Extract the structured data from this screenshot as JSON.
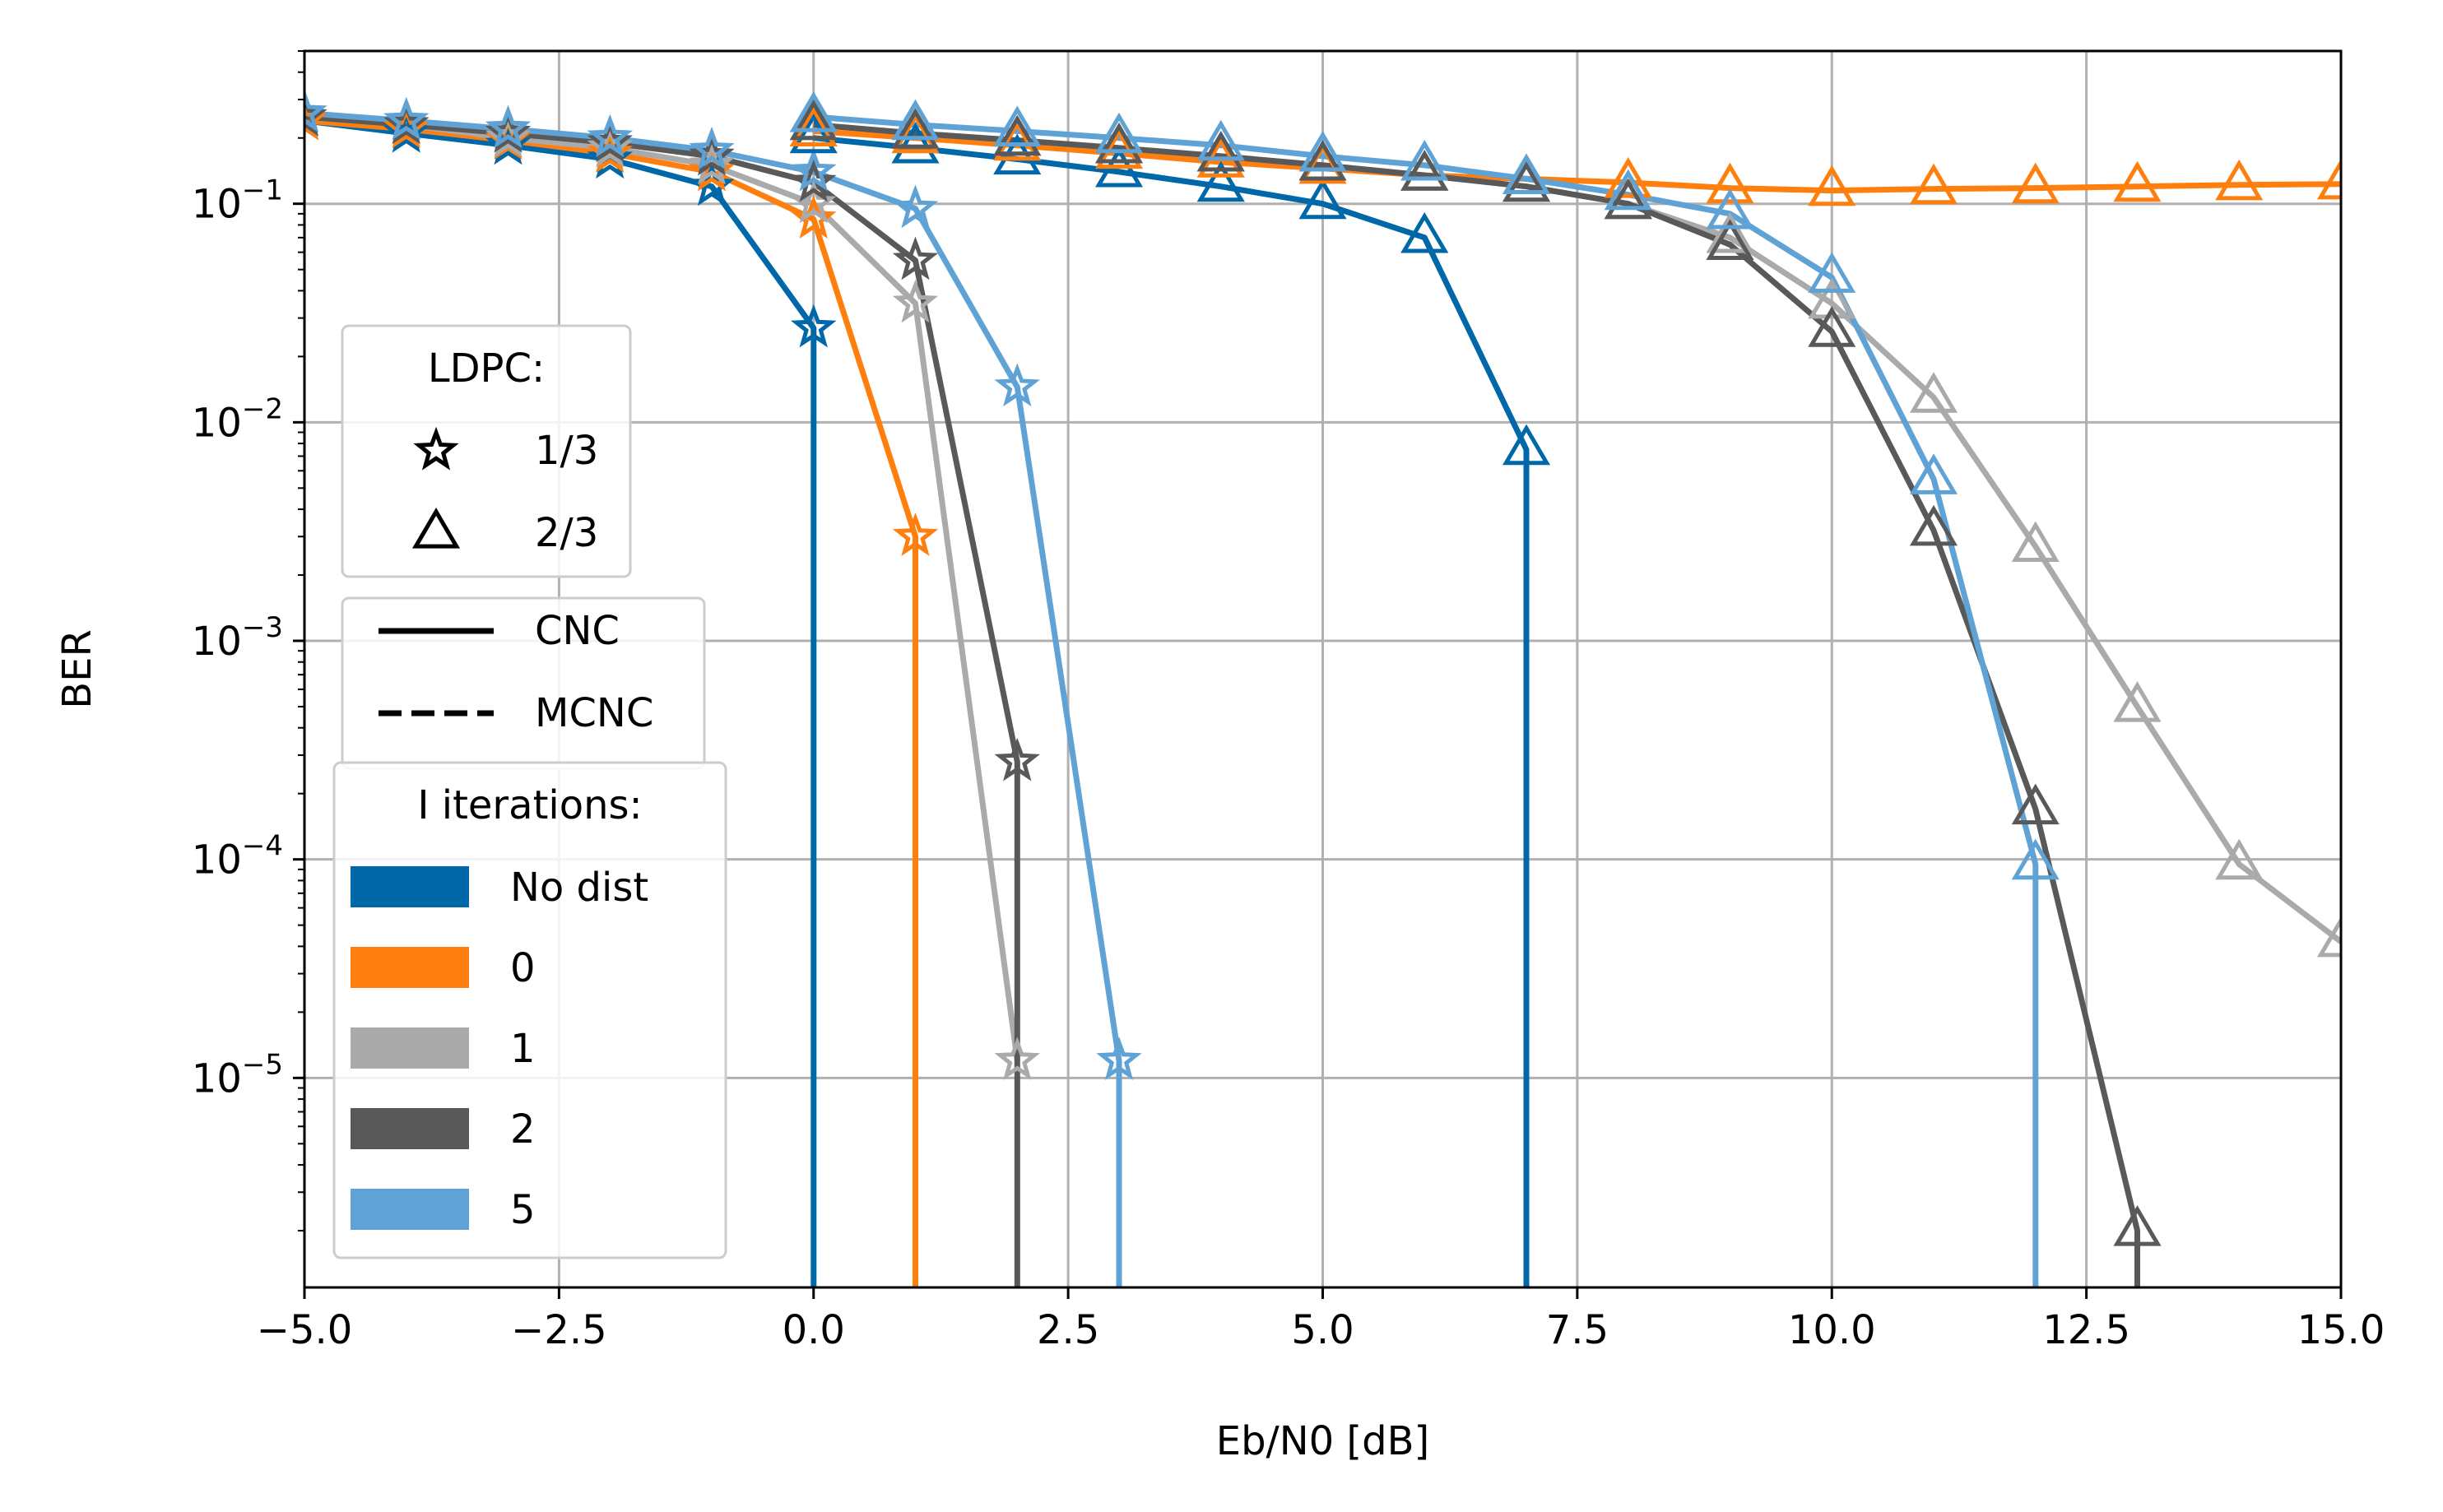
{
  "chart_data": {
    "type": "line",
    "xlabel": "Eb/N0 [dB]",
    "ylabel": "BER",
    "x_scale": "linear",
    "y_scale": "log",
    "xlim": [
      -5,
      15
    ],
    "ylim": [
      1.1e-06,
      0.5
    ],
    "x_ticks": [
      -5,
      -2.5,
      0,
      2.5,
      5,
      7.5,
      10,
      12.5,
      15
    ],
    "x_tick_labels": [
      "−5.0",
      "−2.5",
      "0.0",
      "2.5",
      "5.0",
      "7.5",
      "10.0",
      "12.5",
      "15.0"
    ],
    "y_ticks": [
      1e-05,
      0.0001,
      0.001,
      0.01,
      0.1
    ],
    "y_tick_labels": [
      {
        "base": "10",
        "exp": "−5"
      },
      {
        "base": "10",
        "exp": "−4"
      },
      {
        "base": "10",
        "exp": "−3"
      },
      {
        "base": "10",
        "exp": "−2"
      },
      {
        "base": "10",
        "exp": "−1"
      }
    ],
    "grid": true,
    "colors": {
      "No dist": "#0068a8",
      "0": "#ff7f0e",
      "1": "#aaaaaa",
      "2": "#595959",
      "5": "#5fa2d5"
    },
    "series": [
      {
        "iterations": "No dist",
        "rate": "1/3",
        "marker": "star",
        "x": [
          -5,
          -4,
          -3,
          -2,
          -1,
          0
        ],
        "y": [
          0.24,
          0.21,
          0.185,
          0.16,
          0.12,
          0.027
        ],
        "drop_to_floor": true
      },
      {
        "iterations": "0",
        "rate": "1/3",
        "marker": "star",
        "x": [
          -5,
          -4,
          -3,
          -2,
          -1,
          0,
          1
        ],
        "y": [
          0.24,
          0.22,
          0.195,
          0.17,
          0.14,
          0.085,
          0.003
        ],
        "drop_to_floor": true
      },
      {
        "iterations": "1",
        "rate": "1/3",
        "marker": "star",
        "x": [
          -5,
          -4,
          -3,
          -2,
          -1,
          0,
          1,
          2
        ],
        "y": [
          0.25,
          0.23,
          0.2,
          0.18,
          0.15,
          0.1,
          0.035,
          1.2e-05
        ],
        "drop_to_floor": false
      },
      {
        "iterations": "2",
        "rate": "1/3",
        "marker": "star",
        "x": [
          -5,
          -4,
          -3,
          -2,
          -1,
          0,
          1,
          2
        ],
        "y": [
          0.25,
          0.23,
          0.21,
          0.19,
          0.165,
          0.125,
          0.055,
          0.00028
        ],
        "drop_to_floor": true
      },
      {
        "iterations": "5",
        "rate": "1/3",
        "marker": "star",
        "x": [
          -5,
          -4,
          -3,
          -2,
          -1,
          0,
          1,
          2,
          3
        ],
        "y": [
          0.26,
          0.24,
          0.22,
          0.2,
          0.175,
          0.14,
          0.095,
          0.0145,
          1.2e-05
        ],
        "drop_to_floor": true
      },
      {
        "iterations": "No dist",
        "rate": "2/3",
        "marker": "triangle",
        "x": [
          0,
          1,
          2,
          3,
          4,
          5,
          6,
          7
        ],
        "y": [
          0.2,
          0.18,
          0.16,
          0.14,
          0.12,
          0.1,
          0.07,
          0.0075
        ],
        "drop_to_floor": true
      },
      {
        "iterations": "0",
        "rate": "2/3",
        "marker": "triangle",
        "x": [
          0,
          1,
          2,
          3,
          4,
          5,
          6,
          7,
          8,
          9,
          10,
          11,
          12,
          13,
          14,
          15
        ],
        "y": [
          0.215,
          0.2,
          0.185,
          0.17,
          0.155,
          0.145,
          0.135,
          0.13,
          0.125,
          0.118,
          0.115,
          0.117,
          0.118,
          0.12,
          0.122,
          0.123
        ],
        "drop_to_floor": false
      },
      {
        "iterations": "1",
        "rate": "2/3",
        "marker": "triangle",
        "x": [
          0,
          1,
          2,
          3,
          4,
          5,
          6,
          7,
          8,
          9,
          10,
          11,
          12,
          13,
          14,
          15
        ],
        "y": [
          0.23,
          0.21,
          0.195,
          0.18,
          0.165,
          0.15,
          0.135,
          0.12,
          0.1,
          0.07,
          0.035,
          0.013,
          0.0027,
          0.0005,
          9.5e-05,
          4.2e-05
        ],
        "drop_to_floor": false
      },
      {
        "iterations": "2",
        "rate": "2/3",
        "marker": "triangle",
        "x": [
          0,
          1,
          2,
          3,
          4,
          5,
          6,
          7,
          8,
          9,
          10,
          11,
          12,
          13
        ],
        "y": [
          0.23,
          0.21,
          0.195,
          0.18,
          0.165,
          0.15,
          0.135,
          0.12,
          0.1,
          0.065,
          0.026,
          0.0032,
          0.00017,
          2e-06
        ],
        "drop_to_floor": true
      },
      {
        "iterations": "5",
        "rate": "2/3",
        "marker": "triangle",
        "x": [
          0,
          1,
          2,
          3,
          4,
          5,
          6,
          7,
          8,
          9,
          10,
          11,
          12
        ],
        "y": [
          0.25,
          0.23,
          0.215,
          0.2,
          0.185,
          0.165,
          0.15,
          0.13,
          0.11,
          0.09,
          0.046,
          0.0055,
          9.5e-05
        ],
        "drop_to_floor": true
      }
    ],
    "legends": [
      {
        "title": "LDPC:",
        "placement": "left",
        "entries": [
          {
            "label": "1/3",
            "symbol": "star"
          },
          {
            "label": "2/3",
            "symbol": "triangle"
          }
        ]
      },
      {
        "title": "",
        "placement": "left",
        "entries": [
          {
            "label": "CNC",
            "symbol": "solid-line"
          },
          {
            "label": "MCNC",
            "symbol": "dashed-line"
          }
        ]
      },
      {
        "title": "I iterations:",
        "placement": "lower-left",
        "entries": [
          {
            "label": "No dist",
            "symbol": "patch",
            "color": "#0068a8"
          },
          {
            "label": "0",
            "symbol": "patch",
            "color": "#ff7f0e"
          },
          {
            "label": "1",
            "symbol": "patch",
            "color": "#aaaaaa"
          },
          {
            "label": "2",
            "symbol": "patch",
            "color": "#595959"
          },
          {
            "label": "5",
            "symbol": "patch",
            "color": "#5fa2d5"
          }
        ]
      }
    ]
  }
}
